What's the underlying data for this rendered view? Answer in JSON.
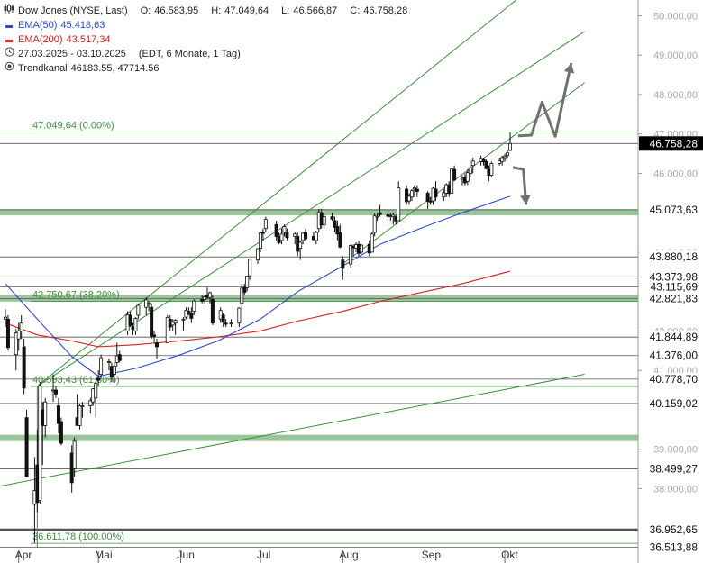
{
  "legend": {
    "instrument": "Dow Jones (NYSE, Last)",
    "ohlc": [
      {
        "label": "O:",
        "value": "46.583,95"
      },
      {
        "label": "H:",
        "value": "47.049,64"
      },
      {
        "label": "L:",
        "value": "46.566,87"
      },
      {
        "label": "C:",
        "value": "46.758,28"
      }
    ],
    "ema50_label": "EMA(50)",
    "ema50_value": "45.418,63",
    "ema200_label": "EMA(200)",
    "ema200_value": "43.517,34",
    "period": "27.03.2025 - 03.10.2025",
    "period_detail": "(EDT, 6 Monate, 1 Tag)",
    "trendchannel_label": "Trendkanal",
    "trendchannel_value": "46183.55, 47714.56"
  },
  "colors": {
    "ema50": "#2e49d6",
    "ema200": "#d42020",
    "trend": "#3d8f3d",
    "zone": "#8fbf8f",
    "arrow": "#707070",
    "price_tag": "#000000"
  },
  "chart_data": {
    "type": "candlestick",
    "x_range": [
      "2025-03-27",
      "2025-10-03"
    ],
    "ylim": [
      36500,
      50400
    ],
    "y_ticks": [
      "38.000,00",
      "39.000,00",
      "41.000,00",
      "42.000,00",
      "44.000,00",
      "46.000,00",
      "47.000,00",
      "48.000,00",
      "49.000,00",
      "50.000,00"
    ],
    "x_ticks": [
      {
        "date": "2025-04-01",
        "label": "Apr"
      },
      {
        "date": "2025-05-01",
        "label": "Mai"
      },
      {
        "date": "2025-06-01",
        "label": "Jun"
      },
      {
        "date": "2025-07-01",
        "label": "Jul"
      },
      {
        "date": "2025-08-01",
        "label": "Aug"
      },
      {
        "date": "2025-09-01",
        "label": "Sep"
      },
      {
        "date": "2025-10-01",
        "label": "Okt"
      }
    ],
    "horizontal_levels": [
      {
        "value": 47049.64,
        "label": "47.049,64",
        "axis": false,
        "color": "#3d8f3d"
      },
      {
        "value": 46758.28,
        "label": "46.758,28",
        "axis": true,
        "highlight": true
      },
      {
        "value": 45073.63,
        "label": "45.073,63",
        "axis": true
      },
      {
        "value": 43880.18,
        "label": "43.880,18",
        "axis": true
      },
      {
        "value": 43373.98,
        "label": "43.373,98",
        "axis": true
      },
      {
        "value": 43115.69,
        "label": "43.115,69",
        "axis": true
      },
      {
        "value": 42821.83,
        "label": "42.821,83",
        "axis": true
      },
      {
        "value": 41844.89,
        "label": "41.844,89",
        "axis": true
      },
      {
        "value": 41376.0,
        "label": "41.376,00",
        "axis": true
      },
      {
        "value": 40778.7,
        "label": "40.778,70",
        "axis": true
      },
      {
        "value": 40159.02,
        "label": "40.159,02",
        "axis": true
      },
      {
        "value": 38499.27,
        "label": "38.499,27",
        "axis": true
      },
      {
        "value": 36952.65,
        "label": "36.952,65",
        "axis": true
      },
      {
        "value": 36513.88,
        "label": "36.513,88",
        "axis": true
      }
    ],
    "fib_labels": [
      {
        "value": 47049.64,
        "text": "47.049,64 (0.00%)"
      },
      {
        "value": 42750.67,
        "text": "42.750,67 (38.20%)"
      },
      {
        "value": 40593.43,
        "text": "40.593,43 (61.80%)"
      },
      {
        "value": 36611.78,
        "text": "36.611,78 (100.00%)"
      }
    ],
    "zones": [
      {
        "from": 44980,
        "to": 45050
      },
      {
        "from": 42750,
        "to": 42860
      },
      {
        "from": 39260,
        "to": 39320
      }
    ],
    "trendlines": [
      {
        "from": [
          "2025-04-08",
          40600
        ],
        "to": [
          "2025-10-31",
          49600
        ]
      },
      {
        "from": [
          "2025-04-08",
          40600
        ],
        "to": [
          "2025-10-31",
          51800
        ]
      },
      {
        "from": [
          "2025-08-01",
          43700
        ],
        "to": [
          "2025-10-31",
          48300
        ]
      },
      {
        "from": [
          "2025-03-20",
          38000
        ],
        "to": [
          "2025-10-31",
          40900
        ]
      }
    ],
    "ema50": [
      [
        "2025-03-27",
        43200
      ],
      [
        "2025-04-08",
        42300
      ],
      [
        "2025-04-21",
        41350
      ],
      [
        "2025-05-01",
        40850
      ],
      [
        "2025-05-15",
        41050
      ],
      [
        "2025-06-01",
        41400
      ],
      [
        "2025-06-15",
        41750
      ],
      [
        "2025-07-01",
        42300
      ],
      [
        "2025-07-15",
        43000
      ],
      [
        "2025-08-01",
        43650
      ],
      [
        "2025-08-15",
        44200
      ],
      [
        "2025-09-01",
        44650
      ],
      [
        "2025-09-15",
        45000
      ],
      [
        "2025-10-03",
        45418.63
      ]
    ],
    "ema200": [
      [
        "2025-03-27",
        42200
      ],
      [
        "2025-04-08",
        41900
      ],
      [
        "2025-04-21",
        41750
      ],
      [
        "2025-05-01",
        41600
      ],
      [
        "2025-05-15",
        41650
      ],
      [
        "2025-06-01",
        41750
      ],
      [
        "2025-06-15",
        41850
      ],
      [
        "2025-07-01",
        42000
      ],
      [
        "2025-07-15",
        42250
      ],
      [
        "2025-08-01",
        42500
      ],
      [
        "2025-08-15",
        42750
      ],
      [
        "2025-09-01",
        43000
      ],
      [
        "2025-09-15",
        43200
      ],
      [
        "2025-10-03",
        43517.34
      ]
    ],
    "candles": [
      [
        "2025-03-27",
        42300,
        42550,
        42100,
        42350
      ],
      [
        "2025-03-28",
        42300,
        42400,
        41500,
        41580
      ],
      [
        "2025-03-31",
        41400,
        42050,
        41000,
        41950
      ],
      [
        "2025-04-01",
        41800,
        42200,
        41500,
        42000
      ],
      [
        "2025-04-02",
        42000,
        42400,
        41800,
        42200
      ],
      [
        "2025-04-03",
        41600,
        41800,
        40400,
        40550
      ],
      [
        "2025-04-04",
        39800,
        40000,
        38300,
        38300
      ],
      [
        "2025-04-07",
        37600,
        38800,
        36612,
        37950
      ],
      [
        "2025-04-08",
        38600,
        39500,
        37400,
        37650
      ],
      [
        "2025-04-09",
        37700,
        40700,
        37600,
        40600
      ],
      [
        "2025-04-10",
        40000,
        40200,
        38600,
        39600
      ],
      [
        "2025-04-11",
        39600,
        40300,
        39300,
        40200
      ],
      [
        "2025-04-14",
        40500,
        40900,
        40200,
        40500
      ],
      [
        "2025-04-15",
        40500,
        40600,
        40300,
        40400
      ],
      [
        "2025-04-16",
        40100,
        40300,
        39400,
        39650
      ],
      [
        "2025-04-17",
        39700,
        39800,
        39100,
        39150
      ],
      [
        "2025-04-21",
        38900,
        39100,
        37900,
        38150
      ],
      [
        "2025-04-22",
        38500,
        39300,
        38300,
        39200
      ],
      [
        "2025-04-23",
        39800,
        40400,
        39600,
        39600
      ],
      [
        "2025-04-24",
        39600,
        40150,
        39500,
        40100
      ],
      [
        "2025-04-25",
        40100,
        40200,
        39800,
        40100
      ],
      [
        "2025-04-28",
        40100,
        40300,
        39900,
        40230
      ],
      [
        "2025-04-29",
        40200,
        40550,
        40100,
        40530
      ],
      [
        "2025-04-30",
        40300,
        40700,
        39800,
        40670
      ],
      [
        "2025-05-01",
        40800,
        41000,
        40600,
        40750
      ],
      [
        "2025-05-02",
        40900,
        41400,
        40800,
        41320
      ],
      [
        "2025-05-05",
        41200,
        41300,
        41000,
        41220
      ],
      [
        "2025-05-06",
        41100,
        41200,
        40700,
        40830
      ],
      [
        "2025-05-07",
        40900,
        41200,
        40700,
        41110
      ],
      [
        "2025-05-08",
        41200,
        41700,
        41100,
        41370
      ],
      [
        "2025-05-09",
        41400,
        41500,
        41200,
        41250
      ],
      [
        "2025-05-12",
        42000,
        42500,
        41900,
        42410
      ],
      [
        "2025-05-13",
        42400,
        42500,
        42100,
        42140
      ],
      [
        "2025-05-14",
        42100,
        42200,
        41900,
        42050
      ],
      [
        "2025-05-15",
        42000,
        42350,
        41900,
        42320
      ],
      [
        "2025-05-16",
        42400,
        42700,
        42300,
        42650
      ],
      [
        "2025-05-19",
        42600,
        42850,
        42400,
        42790
      ],
      [
        "2025-05-20",
        42700,
        42750,
        42500,
        42680
      ],
      [
        "2025-05-21",
        42600,
        42700,
        41800,
        41860
      ],
      [
        "2025-05-22",
        41900,
        42000,
        41700,
        41860
      ],
      [
        "2025-05-23",
        41700,
        41800,
        41300,
        41600
      ],
      [
        "2025-05-27",
        41700,
        42400,
        41700,
        42340
      ],
      [
        "2025-05-28",
        42300,
        42400,
        42000,
        42100
      ],
      [
        "2025-05-29",
        42150,
        42300,
        42000,
        42220
      ],
      [
        "2025-05-30",
        42200,
        42300,
        41900,
        42270
      ],
      [
        "2025-06-02",
        42300,
        42350,
        42000,
        42300
      ],
      [
        "2025-06-03",
        42350,
        42600,
        42300,
        42520
      ],
      [
        "2025-06-04",
        42500,
        42600,
        42400,
        42430
      ],
      [
        "2025-06-05",
        42450,
        42600,
        42200,
        42320
      ],
      [
        "2025-06-06",
        42500,
        42800,
        42400,
        42760
      ],
      [
        "2025-06-09",
        42800,
        42900,
        42700,
        42760
      ],
      [
        "2025-06-10",
        42800,
        42900,
        42700,
        42870
      ],
      [
        "2025-06-11",
        42900,
        43100,
        42800,
        42860
      ],
      [
        "2025-06-12",
        42850,
        43000,
        42700,
        42970
      ],
      [
        "2025-06-13",
        42800,
        42900,
        42150,
        42200
      ],
      [
        "2025-06-16",
        42300,
        42600,
        42200,
        42520
      ],
      [
        "2025-06-17",
        42400,
        42450,
        42100,
        42220
      ],
      [
        "2025-06-18",
        42200,
        42300,
        42100,
        42170
      ],
      [
        "2025-06-20",
        42200,
        42300,
        42100,
        42200
      ],
      [
        "2025-06-23",
        42200,
        42600,
        42100,
        42580
      ],
      [
        "2025-06-24",
        42700,
        43200,
        42600,
        43090
      ],
      [
        "2025-06-25",
        43100,
        43200,
        42900,
        42980
      ],
      [
        "2025-06-26",
        43100,
        43400,
        43000,
        43390
      ],
      [
        "2025-06-27",
        43400,
        43800,
        43300,
        43820
      ],
      [
        "2025-06-30",
        43800,
        44100,
        43700,
        44090
      ],
      [
        "2025-07-01",
        44100,
        44500,
        44000,
        44490
      ],
      [
        "2025-07-02",
        44500,
        44600,
        44300,
        44480
      ],
      [
        "2025-07-03",
        44600,
        44900,
        44500,
        44830
      ],
      [
        "2025-07-07",
        44700,
        44800,
        44300,
        44400
      ],
      [
        "2025-07-08",
        44400,
        44500,
        44200,
        44240
      ],
      [
        "2025-07-09",
        44300,
        44600,
        44200,
        44460
      ],
      [
        "2025-07-10",
        44500,
        44700,
        44400,
        44650
      ],
      [
        "2025-07-11",
        44500,
        44600,
        44300,
        44370
      ],
      [
        "2025-07-14",
        44400,
        44500,
        44200,
        44460
      ],
      [
        "2025-07-15",
        44400,
        44500,
        43900,
        44020
      ],
      [
        "2025-07-16",
        44100,
        44300,
        43800,
        44250
      ],
      [
        "2025-07-17",
        44300,
        44500,
        44200,
        44480
      ],
      [
        "2025-07-18",
        44500,
        44600,
        44300,
        44340
      ],
      [
        "2025-07-21",
        44400,
        44500,
        44300,
        44320
      ],
      [
        "2025-07-22",
        44300,
        44550,
        44200,
        44500
      ],
      [
        "2025-07-23",
        44600,
        45100,
        44500,
        45010
      ],
      [
        "2025-07-24",
        45000,
        45100,
        44600,
        44690
      ],
      [
        "2025-07-25",
        44700,
        44950,
        44600,
        44900
      ],
      [
        "2025-07-28",
        44900,
        45000,
        44800,
        44840
      ],
      [
        "2025-07-29",
        44800,
        44900,
        44500,
        44630
      ],
      [
        "2025-07-30",
        44650,
        44800,
        44300,
        44460
      ],
      [
        "2025-07-31",
        44500,
        44700,
        44100,
        44130
      ],
      [
        "2025-08-01",
        43800,
        43900,
        43300,
        43590
      ],
      [
        "2025-08-04",
        43700,
        44200,
        43600,
        44170
      ],
      [
        "2025-08-05",
        44150,
        44200,
        43900,
        44110
      ],
      [
        "2025-08-06",
        44100,
        44250,
        44000,
        44190
      ],
      [
        "2025-08-07",
        44200,
        44300,
        43900,
        43970
      ],
      [
        "2025-08-08",
        44000,
        44200,
        43950,
        44180
      ],
      [
        "2025-08-11",
        44200,
        44300,
        43900,
        43980
      ],
      [
        "2025-08-12",
        44000,
        44500,
        44000,
        44460
      ],
      [
        "2025-08-13",
        44500,
        45000,
        44400,
        44920
      ],
      [
        "2025-08-14",
        44900,
        45000,
        44800,
        44910
      ],
      [
        "2025-08-15",
        45000,
        45200,
        44900,
        44950
      ],
      [
        "2025-08-18",
        44950,
        45000,
        44800,
        44910
      ],
      [
        "2025-08-19",
        44900,
        45000,
        44800,
        44920
      ],
      [
        "2025-08-20",
        44900,
        45000,
        44700,
        44940
      ],
      [
        "2025-08-21",
        44900,
        44950,
        44700,
        44790
      ],
      [
        "2025-08-22",
        44800,
        45800,
        44800,
        45630
      ],
      [
        "2025-08-25",
        45600,
        45700,
        45200,
        45280
      ],
      [
        "2025-08-26",
        45300,
        45500,
        45200,
        45420
      ],
      [
        "2025-08-27",
        45400,
        45600,
        45300,
        45560
      ],
      [
        "2025-08-28",
        45600,
        45700,
        45400,
        45630
      ],
      [
        "2025-08-29",
        45600,
        45700,
        45400,
        45540
      ],
      [
        "2025-09-02",
        45500,
        45550,
        45100,
        45290
      ],
      [
        "2025-09-03",
        45300,
        45400,
        45200,
        45270
      ],
      [
        "2025-09-04",
        45300,
        45650,
        45200,
        45620
      ],
      [
        "2025-09-05",
        45600,
        45800,
        45300,
        45400
      ],
      [
        "2025-09-08",
        45400,
        45600,
        45300,
        45510
      ],
      [
        "2025-09-09",
        45500,
        45750,
        45400,
        45710
      ],
      [
        "2025-09-10",
        45700,
        45800,
        45400,
        45490
      ],
      [
        "2025-09-11",
        45500,
        46150,
        45500,
        46110
      ],
      [
        "2025-09-12",
        46100,
        46200,
        45800,
        45830
      ],
      [
        "2025-09-15",
        45850,
        45950,
        45700,
        45880
      ],
      [
        "2025-09-16",
        45900,
        46000,
        45700,
        45760
      ],
      [
        "2025-09-17",
        45800,
        46100,
        45700,
        46020
      ],
      [
        "2025-09-18",
        46000,
        46200,
        45900,
        46140
      ],
      [
        "2025-09-19",
        46200,
        46400,
        46000,
        46310
      ],
      [
        "2025-09-22",
        46300,
        46450,
        46200,
        46380
      ],
      [
        "2025-09-23",
        46350,
        46400,
        46200,
        46290
      ],
      [
        "2025-09-24",
        46300,
        46350,
        46100,
        46120
      ],
      [
        "2025-09-25",
        46100,
        46200,
        45800,
        45950
      ],
      [
        "2025-09-26",
        45950,
        46300,
        45900,
        46250
      ],
      [
        "2025-09-29",
        46250,
        46400,
        46200,
        46320
      ],
      [
        "2025-09-30",
        46300,
        46450,
        46200,
        46400
      ],
      [
        "2025-10-01",
        46400,
        46500,
        46300,
        46440
      ],
      [
        "2025-10-02",
        46450,
        46600,
        46400,
        46520
      ],
      [
        "2025-10-03",
        46583.95,
        47049.64,
        46566.87,
        46758.28
      ]
    ],
    "projection_arrows": [
      {
        "points": [
          [
            "2025-10-06",
            46950
          ],
          [
            "2025-10-11",
            46970
          ],
          [
            "2025-10-15",
            47810
          ],
          [
            "2025-10-20",
            46940
          ],
          [
            "2025-10-26",
            48800
          ]
        ]
      },
      {
        "points": [
          [
            "2025-10-04",
            46150
          ],
          [
            "2025-10-08",
            46100
          ],
          [
            "2025-10-09",
            45200
          ]
        ]
      }
    ]
  }
}
